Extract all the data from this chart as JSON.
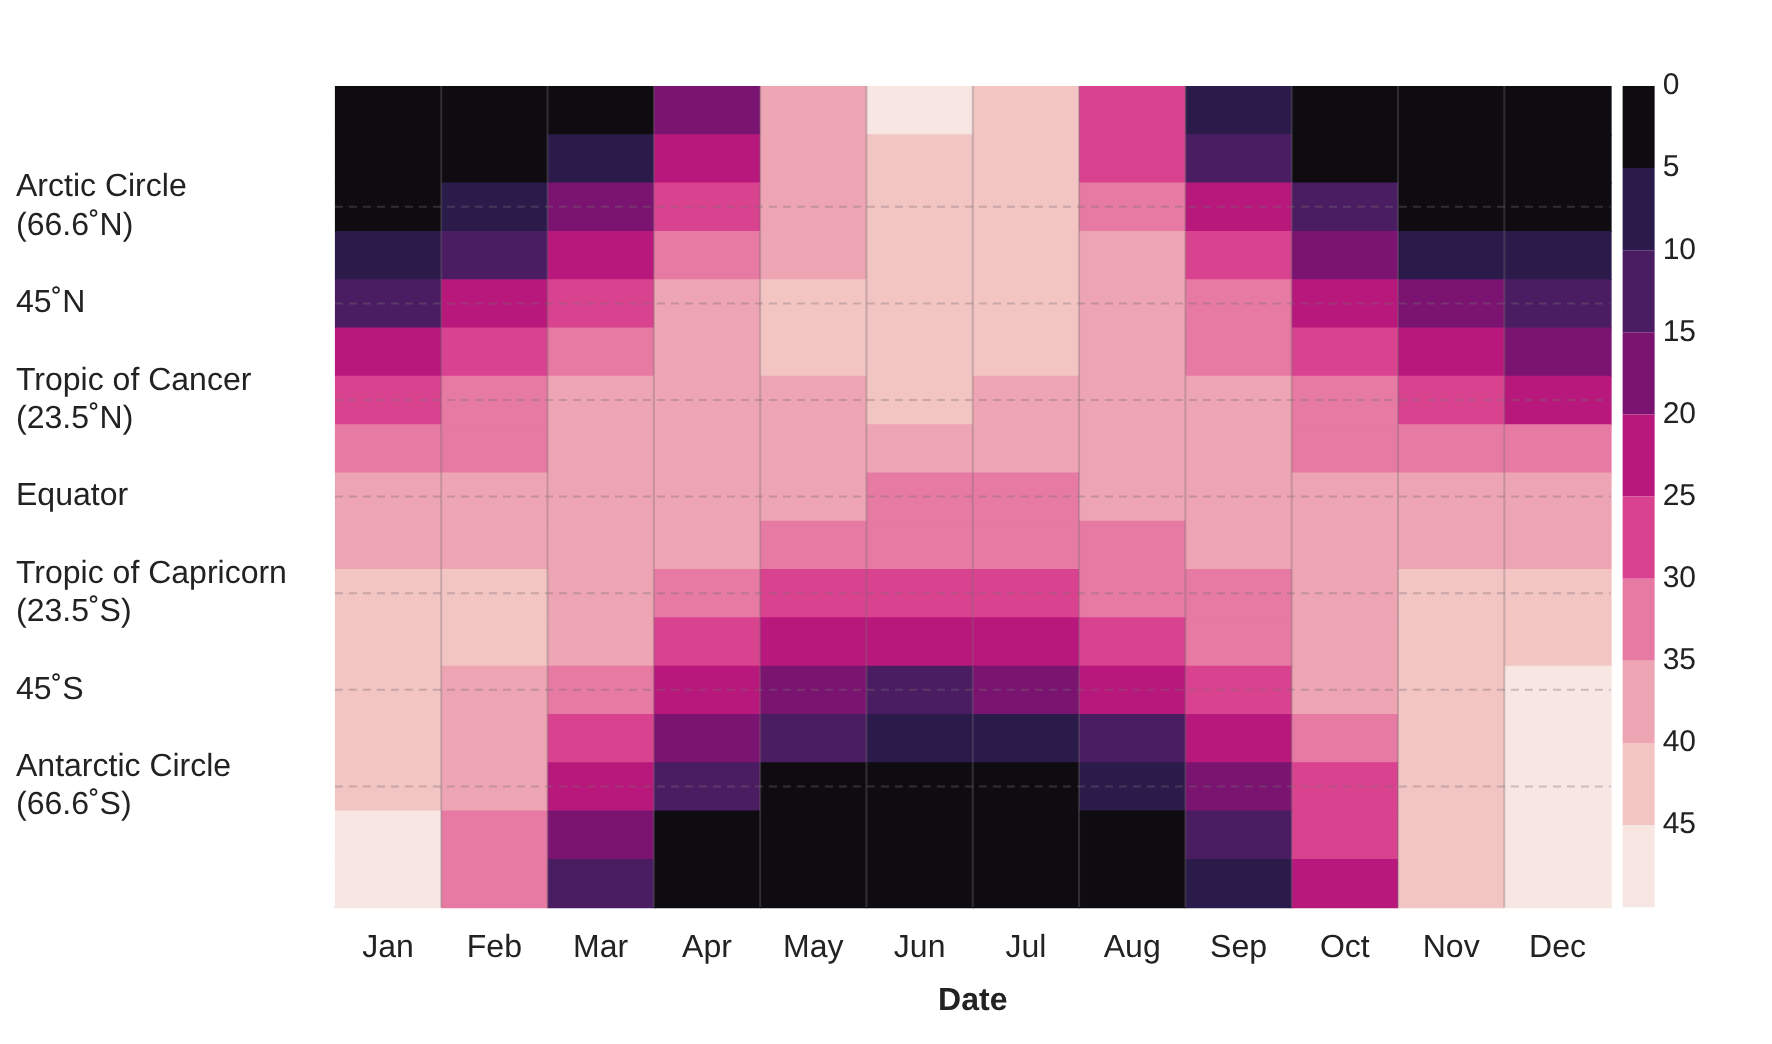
{
  "chart_data": {
    "type": "heatmap",
    "xlabel": "Date",
    "categories": [
      "Jan",
      "Feb",
      "Mar",
      "Apr",
      "May",
      "Jun",
      "Jul",
      "Aug",
      "Sep",
      "Oct",
      "Nov",
      "Dec"
    ],
    "y_categories": [
      null,
      null,
      "Arctic Circle\n(66.6˚N)",
      null,
      "45˚N",
      null,
      "Tropic of Cancer\n(23.5˚N)",
      null,
      "Equator",
      null,
      "Tropic of Capricorn\n(23.5˚S)",
      null,
      "45˚S",
      null,
      "Antarctic Circle\n(66.6˚S)",
      null,
      null
    ],
    "cells": [
      [
        0,
        0,
        0,
        19,
        37,
        45,
        42,
        27,
        6,
        0,
        0,
        0
      ],
      [
        0,
        1,
        7,
        22,
        36,
        43,
        40,
        28,
        12,
        2,
        0,
        0
      ],
      [
        3,
        8,
        17,
        29,
        38,
        43,
        41,
        33,
        21,
        10,
        4,
        1
      ],
      [
        8,
        14,
        23,
        32,
        39,
        42,
        41,
        35,
        26,
        16,
        9,
        6
      ],
      [
        14,
        20,
        28,
        35,
        40,
        42,
        41,
        37,
        31,
        22,
        15,
        12
      ],
      [
        20,
        26,
        32,
        37,
        40,
        41,
        40,
        38,
        34,
        27,
        21,
        18
      ],
      [
        26,
        30,
        35,
        38,
        39,
        40,
        39,
        38,
        36,
        31,
        27,
        24
      ],
      [
        31,
        34,
        37,
        38,
        37,
        36,
        37,
        38,
        37,
        34,
        31,
        30
      ],
      [
        36,
        37,
        38,
        37,
        35,
        33,
        34,
        36,
        38,
        37,
        36,
        35
      ],
      [
        39,
        39,
        38,
        35,
        32,
        30,
        31,
        33,
        36,
        38,
        39,
        39
      ],
      [
        42,
        40,
        37,
        33,
        28,
        25,
        26,
        30,
        34,
        38,
        41,
        42
      ],
      [
        43,
        40,
        35,
        29,
        23,
        20,
        21,
        26,
        31,
        37,
        41,
        43
      ],
      [
        44,
        39,
        32,
        24,
        17,
        14,
        15,
        20,
        27,
        35,
        41,
        45
      ],
      [
        44,
        37,
        28,
        18,
        10,
        7,
        8,
        14,
        23,
        32,
        41,
        45
      ],
      [
        44,
        35,
        23,
        11,
        4,
        1,
        2,
        7,
        17,
        29,
        40,
        46
      ],
      [
        45,
        34,
        17,
        4,
        0,
        0,
        0,
        1,
        10,
        25,
        41,
        47
      ],
      [
        46,
        33,
        12,
        0,
        0,
        0,
        0,
        0,
        5,
        24,
        42,
        48
      ]
    ],
    "clim": [
      0,
      50
    ],
    "cticks": [
      0,
      5,
      10,
      15,
      20,
      25,
      30,
      35,
      40,
      45
    ],
    "grid": true
  }
}
